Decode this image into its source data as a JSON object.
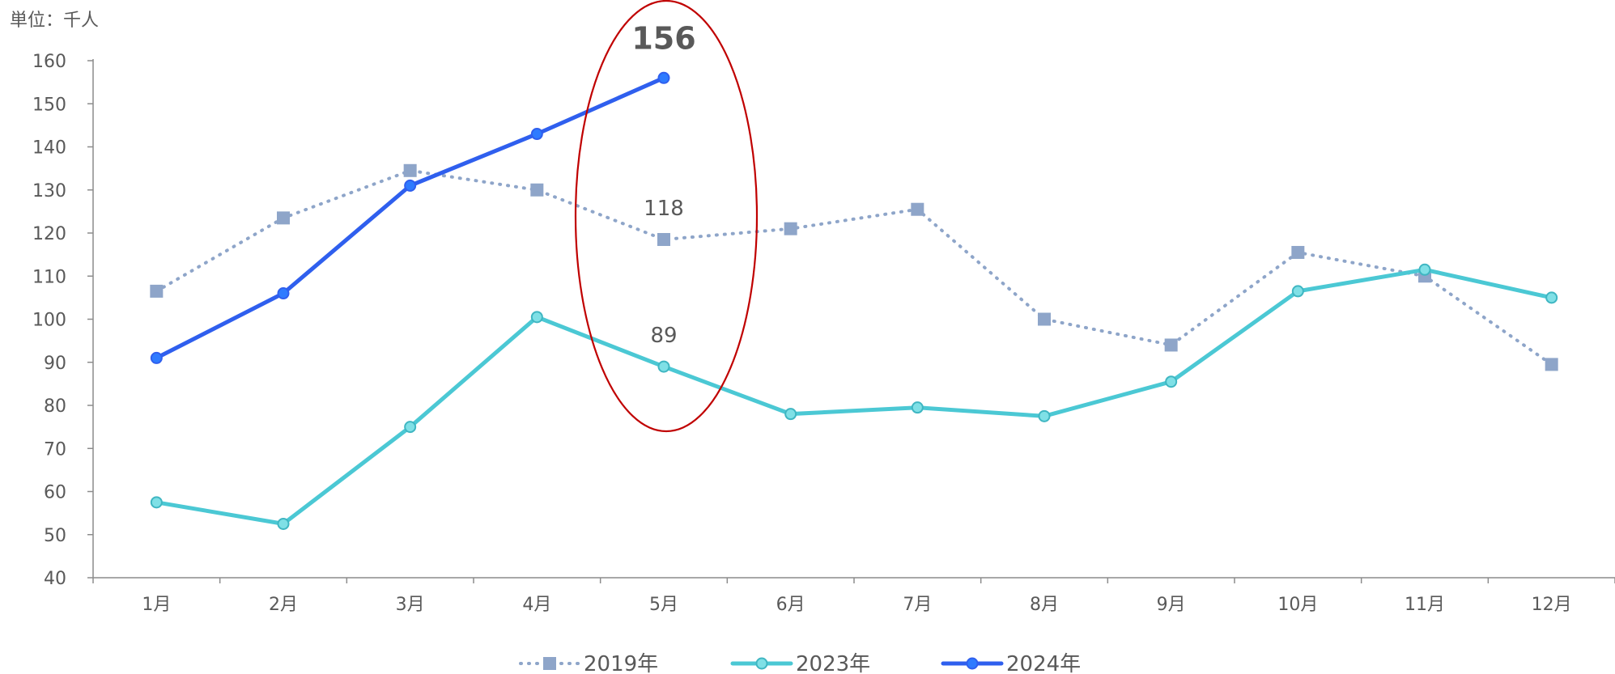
{
  "unit_label": "単位：千人",
  "chart_data": {
    "type": "line",
    "categories": [
      "1月",
      "2月",
      "3月",
      "4月",
      "5月",
      "6月",
      "7月",
      "8月",
      "9月",
      "10月",
      "11月",
      "12月"
    ],
    "ylim": [
      40,
      160
    ],
    "yticks": [
      40,
      50,
      60,
      70,
      80,
      90,
      100,
      110,
      120,
      130,
      140,
      150,
      160
    ],
    "grid": false,
    "legend_position": "bottom",
    "series": [
      {
        "name": "2019年",
        "values": [
          106.5,
          123.5,
          134.5,
          130,
          118.5,
          121,
          125.5,
          100,
          94,
          115.5,
          110,
          89.5
        ],
        "color": "#8EA5C9",
        "marker": "square",
        "dashed": true
      },
      {
        "name": "2023年",
        "values": [
          57.5,
          52.5,
          75,
          100.5,
          89,
          78,
          79.5,
          77.5,
          85.5,
          106.5,
          111.5,
          105
        ],
        "color": "#4BC8D4",
        "marker": "circle",
        "dashed": false
      },
      {
        "name": "2024年",
        "values": [
          91,
          106,
          131,
          143,
          156,
          null,
          null,
          null,
          null,
          null,
          null,
          null
        ],
        "color": "#2F5FEE",
        "marker": "circle",
        "dashed": false
      }
    ],
    "annotations": [
      {
        "label": "156",
        "category": "5月",
        "series": "2024年",
        "emphasis": true
      },
      {
        "label": "118",
        "category": "5月",
        "series": "2019年",
        "emphasis": false
      },
      {
        "label": "89",
        "category": "5月",
        "series": "2023年",
        "emphasis": false
      }
    ],
    "highlight": {
      "category": "5月",
      "shape": "ellipse",
      "color": "#C00000"
    }
  }
}
